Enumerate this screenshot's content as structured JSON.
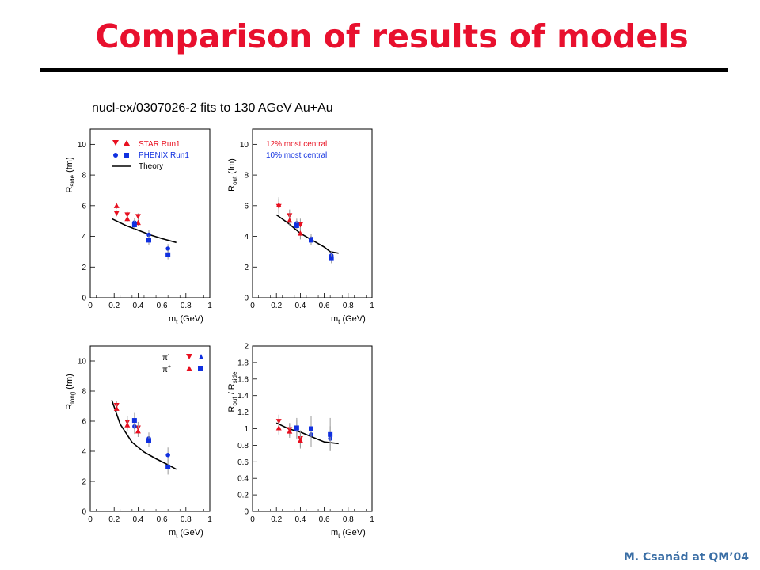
{
  "slide": {
    "title": "Comparison of results of models",
    "caption": "nucl-ex/0307026-2 fits to 130 AGeV Au+Au",
    "footer": "M. Csanád at QM’04"
  },
  "colors": {
    "title": "#e8102e",
    "star": "#e81020",
    "phenix": "#1030e0",
    "theory": "#000000",
    "footer": "#3a6ea5"
  },
  "legend_a": {
    "star": "STAR Run1",
    "phenix": "PHENIX Run1",
    "theory": "Theory"
  },
  "legend_b": {
    "star": "12% most central",
    "phenix": "10% most central"
  },
  "legend_c": {
    "pim": "π",
    "pim_sup": "-",
    "pip": "π",
    "pip_sup": "+"
  },
  "chart_data": [
    {
      "type": "scatter",
      "ylabel_main": "R",
      "ylabel_sub": "side",
      "ylabel_unit": "(fm)",
      "xlabel_main": "m",
      "xlabel_sub": "t",
      "xlabel_unit": "(GeV)",
      "xlim": [
        0,
        1
      ],
      "ylim": [
        0,
        11
      ],
      "xticks": [
        0,
        0.2,
        0.4,
        0.6,
        0.8,
        1
      ],
      "yticks": [
        0,
        2,
        4,
        6,
        8,
        10
      ],
      "series": [
        {
          "name": "STAR Run1",
          "marker": "triangle-down",
          "points": [
            [
              0.22,
              5.5,
              0.2
            ],
            [
              0.31,
              5.4,
              0.2
            ],
            [
              0.4,
              5.3,
              0.2
            ]
          ]
        },
        {
          "name": "STAR Run1",
          "marker": "triangle-up",
          "points": [
            [
              0.22,
              6.0,
              0.2
            ],
            [
              0.31,
              5.15,
              0.2
            ],
            [
              0.4,
              4.9,
              0.2
            ]
          ]
        },
        {
          "name": "PHENIX Run1",
          "marker": "circle",
          "points": [
            [
              0.37,
              4.9,
              0.3
            ],
            [
              0.49,
              4.1,
              0.3
            ],
            [
              0.65,
              3.2,
              0.3
            ]
          ]
        },
        {
          "name": "PHENIX Run1",
          "marker": "square",
          "points": [
            [
              0.37,
              4.75,
              0.3
            ],
            [
              0.49,
              3.75,
              0.3
            ],
            [
              0.65,
              2.8,
              0.3
            ]
          ]
        }
      ],
      "theory": [
        [
          0.18,
          5.15
        ],
        [
          0.3,
          4.7
        ],
        [
          0.4,
          4.4
        ],
        [
          0.5,
          4.1
        ],
        [
          0.6,
          3.85
        ],
        [
          0.72,
          3.6
        ]
      ]
    },
    {
      "type": "scatter",
      "ylabel_main": "R",
      "ylabel_sub": "out",
      "ylabel_unit": "(fm)",
      "xlabel_main": "m",
      "xlabel_sub": "t",
      "xlabel_unit": "(GeV)",
      "xlim": [
        0,
        1
      ],
      "ylim": [
        0,
        11
      ],
      "xticks": [
        0,
        0.2,
        0.4,
        0.6,
        0.8,
        1
      ],
      "yticks": [
        0,
        2,
        4,
        6,
        8,
        10
      ],
      "series": [
        {
          "name": "STAR Run1",
          "marker": "triangle-down",
          "points": [
            [
              0.22,
              5.95,
              0.5
            ],
            [
              0.31,
              5.35,
              0.4
            ],
            [
              0.4,
              4.75,
              0.4
            ]
          ]
        },
        {
          "name": "STAR Run1",
          "marker": "triangle-up",
          "points": [
            [
              0.22,
              6.05,
              0.5
            ],
            [
              0.31,
              5.05,
              0.4
            ],
            [
              0.4,
              4.2,
              0.4
            ]
          ]
        },
        {
          "name": "PHENIX Run1",
          "marker": "circle",
          "points": [
            [
              0.37,
              4.85,
              0.3
            ],
            [
              0.49,
              3.85,
              0.3
            ],
            [
              0.66,
              2.75,
              0.3
            ]
          ]
        },
        {
          "name": "PHENIX Run1",
          "marker": "square",
          "points": [
            [
              0.37,
              4.7,
              0.3
            ],
            [
              0.49,
              3.75,
              0.3
            ],
            [
              0.66,
              2.55,
              0.3
            ]
          ]
        }
      ],
      "theory": [
        [
          0.2,
          5.4
        ],
        [
          0.3,
          4.85
        ],
        [
          0.4,
          4.2
        ],
        [
          0.5,
          3.75
        ],
        [
          0.6,
          3.3
        ],
        [
          0.65,
          3.0
        ],
        [
          0.72,
          2.9
        ]
      ]
    },
    {
      "type": "scatter",
      "ylabel_main": "R",
      "ylabel_sub": "long",
      "ylabel_unit": "(fm)",
      "xlabel_main": "m",
      "xlabel_sub": "t",
      "xlabel_unit": "(GeV)",
      "xlim": [
        0,
        1
      ],
      "ylim": [
        0,
        11
      ],
      "xticks": [
        0,
        0.2,
        0.4,
        0.6,
        0.8,
        1
      ],
      "yticks": [
        0,
        2,
        4,
        6,
        8,
        10
      ],
      "series": [
        {
          "name": "π-",
          "marker": "triangle-down",
          "points": [
            [
              0.22,
              7.05,
              0.3
            ],
            [
              0.31,
              5.95,
              0.4
            ],
            [
              0.4,
              5.55,
              0.4
            ]
          ]
        },
        {
          "name": "π+",
          "marker": "triangle-up",
          "points": [
            [
              0.22,
              6.85,
              0.3
            ],
            [
              0.31,
              5.75,
              0.4
            ],
            [
              0.4,
              5.35,
              0.4
            ]
          ]
        },
        {
          "name": "π-",
          "marker": "circle",
          "points": [
            [
              0.37,
              5.65,
              0.5
            ],
            [
              0.49,
              4.85,
              0.4
            ],
            [
              0.65,
              3.75,
              0.5
            ]
          ]
        },
        {
          "name": "π+",
          "marker": "square",
          "points": [
            [
              0.37,
              6.05,
              0.5
            ],
            [
              0.49,
              4.7,
              0.4
            ],
            [
              0.65,
              2.95,
              0.5
            ]
          ]
        }
      ],
      "theory": [
        [
          0.18,
          7.4
        ],
        [
          0.25,
          5.8
        ],
        [
          0.35,
          4.6
        ],
        [
          0.45,
          3.95
        ],
        [
          0.55,
          3.5
        ],
        [
          0.65,
          3.1
        ],
        [
          0.72,
          2.8
        ]
      ]
    },
    {
      "type": "scatter",
      "ylabel_main": "R",
      "ylabel_sub": "out",
      "ylabel_mid": "/ R",
      "ylabel_sub2": "side",
      "xlabel_main": "m",
      "xlabel_sub": "t",
      "xlabel_unit": "(GeV)",
      "xlim": [
        0,
        1
      ],
      "ylim": [
        0,
        2
      ],
      "xticks": [
        0,
        0.2,
        0.4,
        0.6,
        0.8,
        1
      ],
      "yticks": [
        0,
        0.2,
        0.4,
        0.6,
        0.8,
        1,
        1.2,
        1.4,
        1.6,
        1.8,
        2
      ],
      "series": [
        {
          "name": "STAR Run1",
          "marker": "triangle-down",
          "points": [
            [
              0.22,
              1.09,
              0.08
            ],
            [
              0.31,
              0.99,
              0.08
            ],
            [
              0.4,
              0.88,
              0.1
            ]
          ]
        },
        {
          "name": "STAR Run1",
          "marker": "triangle-up",
          "points": [
            [
              0.22,
              1.01,
              0.08
            ],
            [
              0.31,
              0.97,
              0.08
            ],
            [
              0.4,
              0.86,
              0.1
            ]
          ]
        },
        {
          "name": "PHENIX Run1",
          "marker": "circle",
          "points": [
            [
              0.37,
              0.99,
              0.12
            ],
            [
              0.49,
              0.93,
              0.15
            ],
            [
              0.65,
              0.88,
              0.15
            ]
          ]
        },
        {
          "name": "PHENIX Run1",
          "marker": "square",
          "points": [
            [
              0.37,
              1.01,
              0.12
            ],
            [
              0.49,
              1.0,
              0.15
            ],
            [
              0.65,
              0.93,
              0.2
            ]
          ]
        }
      ],
      "theory": [
        [
          0.2,
          1.07
        ],
        [
          0.3,
          1.0
        ],
        [
          0.4,
          0.96
        ],
        [
          0.5,
          0.9
        ],
        [
          0.6,
          0.84
        ],
        [
          0.72,
          0.82
        ]
      ]
    }
  ]
}
